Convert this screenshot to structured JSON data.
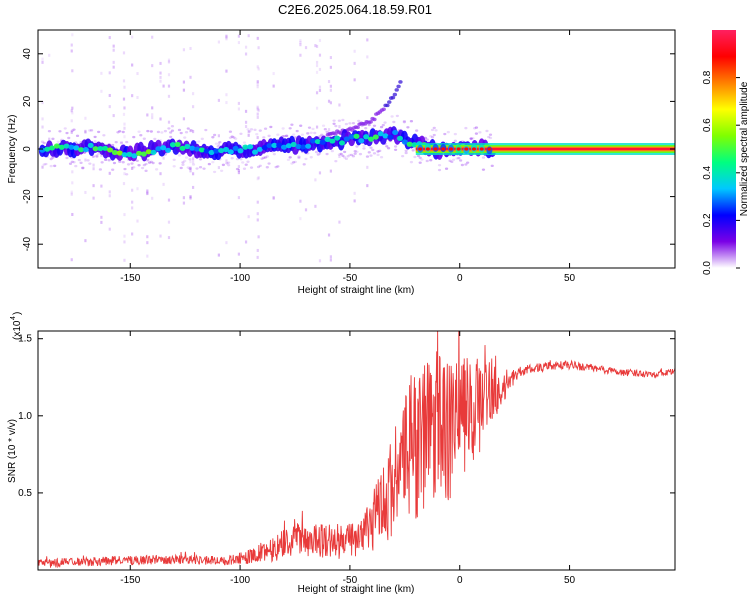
{
  "title": "C2E6.2025.064.18.59.R01",
  "chart_data": [
    {
      "type": "heatmap",
      "xlabel": "Height of straight line (km)",
      "ylabel": "Frequency (Hz)",
      "xlim": [
        -192,
        98
      ],
      "ylim": [
        -50,
        50
      ],
      "xticks": [
        -150,
        -100,
        -50,
        0,
        50
      ],
      "xtick_labels": [
        "-150",
        "-100",
        "-50",
        "0",
        "50"
      ],
      "yticks": [
        -40,
        -20,
        0,
        20,
        40
      ],
      "ytick_labels": [
        "-40",
        "-20",
        "0",
        "20",
        "40"
      ],
      "colorbar": {
        "label": "Normalized spectral amplitude",
        "range": [
          0,
          1
        ],
        "ticks": [
          0.0,
          0.2,
          0.4,
          0.6,
          0.8
        ],
        "tick_labels": [
          "0.0",
          "0.2",
          "0.4",
          "0.6",
          "0.8"
        ],
        "colormap": [
          "#ffffff",
          "#7a00e6",
          "#0000ff",
          "#00c8ff",
          "#00ff80",
          "#80ff00",
          "#ffff00",
          "#ff8000",
          "#ff0000",
          "#ff2060"
        ]
      },
      "ridge": {
        "description_free": true,
        "x": [
          -190,
          -170,
          -150,
          -130,
          -110,
          -90,
          -70,
          -50,
          -40,
          -30,
          -20,
          -10,
          0,
          10,
          20,
          50,
          98
        ],
        "y": [
          0,
          1,
          -2,
          1,
          -1,
          0,
          2,
          4,
          5,
          6,
          2,
          0,
          0,
          0,
          0,
          0,
          0
        ],
        "amplitude": [
          0.45,
          0.5,
          0.55,
          0.45,
          0.4,
          0.4,
          0.35,
          0.45,
          0.5,
          0.35,
          0.55,
          0.8,
          0.85,
          0.85,
          0.95,
          0.95,
          0.95
        ]
      },
      "branch": {
        "x": [
          -60,
          -50,
          -40,
          -35,
          -30,
          -27
        ],
        "y": [
          6,
          8,
          12,
          17,
          22,
          28
        ]
      }
    },
    {
      "type": "line",
      "xlabel": "Height of straight line (km)",
      "ylabel": "SNR (10 * v/v)",
      "y_multiplier_label": "(x10",
      "y_multiplier_exp": "4",
      "xlim": [
        -192,
        98
      ],
      "ylim": [
        0,
        1.55
      ],
      "xticks": [
        -150,
        -100,
        -50,
        0,
        50
      ],
      "xtick_labels": [
        "-150",
        "-100",
        "-50",
        "0",
        "50"
      ],
      "yticks": [
        0.5,
        1.0,
        1.5
      ],
      "ytick_labels": [
        "0.5",
        "1.0",
        "1.5"
      ],
      "series_color": "#e83a3a",
      "envelope": {
        "x": [
          -192,
          -160,
          -130,
          -105,
          -95,
          -85,
          -75,
          -65,
          -55,
          -45,
          -40,
          -35,
          -30,
          -25,
          -20,
          -15,
          -10,
          -5,
          0,
          5,
          10,
          15,
          20,
          25,
          30,
          40,
          50,
          60,
          75,
          90,
          98
        ],
        "y": [
          0.04,
          0.06,
          0.07,
          0.06,
          0.09,
          0.14,
          0.2,
          0.2,
          0.18,
          0.2,
          0.3,
          0.42,
          0.58,
          0.72,
          0.85,
          0.92,
          0.95,
          0.9,
          0.95,
          1.02,
          1.08,
          1.15,
          1.18,
          1.26,
          1.3,
          1.32,
          1.33,
          1.31,
          1.28,
          1.27,
          1.29
        ]
      },
      "noise_amplitude": {
        "x": [
          -192,
          -105,
          -95,
          -80,
          -60,
          -45,
          -35,
          -25,
          -20,
          -15,
          -10,
          0,
          10,
          20,
          25,
          35,
          98
        ],
        "y": [
          0.03,
          0.03,
          0.05,
          0.1,
          0.12,
          0.12,
          0.28,
          0.4,
          0.55,
          0.55,
          0.5,
          0.45,
          0.3,
          0.12,
          0.04,
          0.03,
          0.02
        ]
      }
    }
  ]
}
